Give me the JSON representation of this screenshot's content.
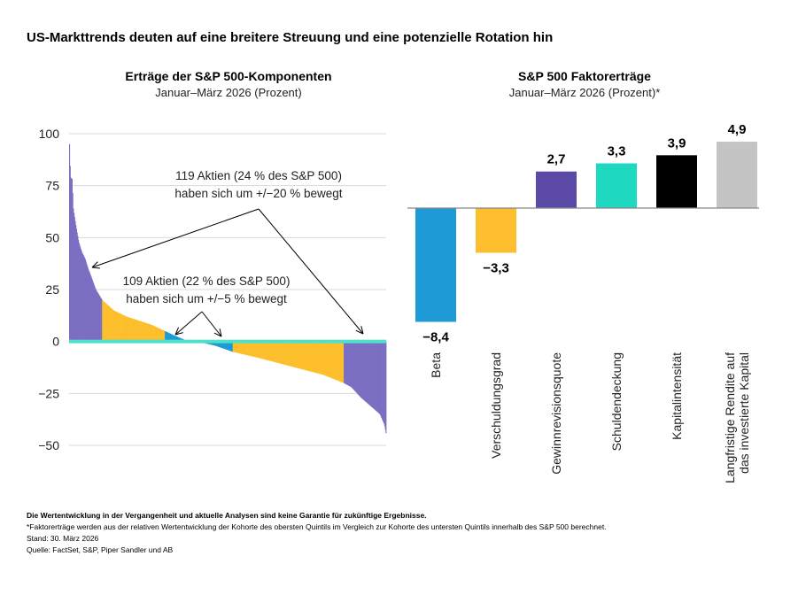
{
  "title": "US-Markttrends deuten auf eine breitere Streuung und eine potenzielle Rotation hin",
  "chart_data": [
    {
      "type": "bar",
      "title": "Erträge der S&P 500-Komponenten",
      "subtitle": "Januar–März 2026 (Prozent)",
      "ylim": [
        -50,
        100
      ],
      "yticks": [
        100,
        75,
        50,
        25,
        0,
        -25,
        -50
      ],
      "ytick_labels": [
        "100",
        "75",
        "50",
        "25",
        "0",
        "−25",
        "−50"
      ],
      "grid": true,
      "sorted_returns_curve": [
        [
          0,
          100
        ],
        [
          1,
          90
        ],
        [
          2,
          79
        ],
        [
          5,
          78
        ],
        [
          6,
          65
        ],
        [
          10,
          57
        ],
        [
          15,
          48
        ],
        [
          20,
          43
        ],
        [
          25,
          40
        ],
        [
          30,
          35
        ],
        [
          35,
          31
        ],
        [
          42,
          25
        ],
        [
          52,
          20
        ],
        [
          70,
          15
        ],
        [
          90,
          12
        ],
        [
          110,
          10
        ],
        [
          130,
          8
        ],
        [
          151,
          5
        ],
        [
          165,
          3
        ],
        [
          184,
          0.5
        ],
        [
          209,
          -0.5
        ],
        [
          230,
          -2
        ],
        [
          258,
          -5
        ],
        [
          300,
          -8
        ],
        [
          350,
          -12
        ],
        [
          400,
          -16
        ],
        [
          433,
          -20
        ],
        [
          445,
          -22
        ],
        [
          460,
          -27
        ],
        [
          475,
          -31
        ],
        [
          490,
          -35
        ],
        [
          497,
          -40
        ],
        [
          500,
          -45
        ]
      ],
      "stock_count": 500,
      "bands": [
        {
          "range": "> 20 / < −20",
          "color": "#7b6fc2"
        },
        {
          "range": "5 to 20 / −5 to −20",
          "color": "#fdbf2d"
        },
        {
          "range": "0 to 5 / 0 to −5",
          "color": "#1e9ad6"
        }
      ],
      "zero_line_color": "#4fe0cc",
      "annotations": [
        {
          "line1": "119 Aktien (24 % des S&P 500)",
          "line2": "haben sich um +/−20 % bewegt"
        },
        {
          "line1": "109 Aktien (22 % des S&P 500)",
          "line2": "haben sich um +/−5 % bewegt"
        }
      ]
    },
    {
      "type": "bar",
      "title": "S&P 500 Faktorerträge",
      "subtitle": "Januar–März 2026 (Prozent)*",
      "categories": [
        "Beta",
        "Verschuldungsgrad",
        "Gewinnrevisionsquote",
        "Schuldendeckung",
        "Kapitalintensität",
        "Langfristige Rendite auf|das investierte Kapital"
      ],
      "values": [
        -8.4,
        -3.3,
        2.7,
        3.3,
        3.9,
        4.9
      ],
      "value_labels": [
        "−8,4",
        "−3,3",
        "2,7",
        "3,3",
        "3,9",
        "4,9"
      ],
      "colors": [
        "#1e9ad6",
        "#fdbf2d",
        "#5a4aa5",
        "#1fd8c0",
        "#000000",
        "#c4c4c4"
      ]
    }
  ],
  "footer": {
    "disclaimer": "Die Wertentwicklung in der Vergangenheit und aktuelle Analysen sind keine Garantie für zukünftige Ergebnisse.",
    "note": "*Faktorerträge werden aus der relativen Wertentwicklung der Kohorte des obersten Quintils im Vergleich zur Kohorte des untersten Quintils innerhalb des S&P 500 berechnet.",
    "date": "Stand: 30. März 2026",
    "source": "Quelle: FactSet, S&P, Piper Sandler und AB"
  }
}
